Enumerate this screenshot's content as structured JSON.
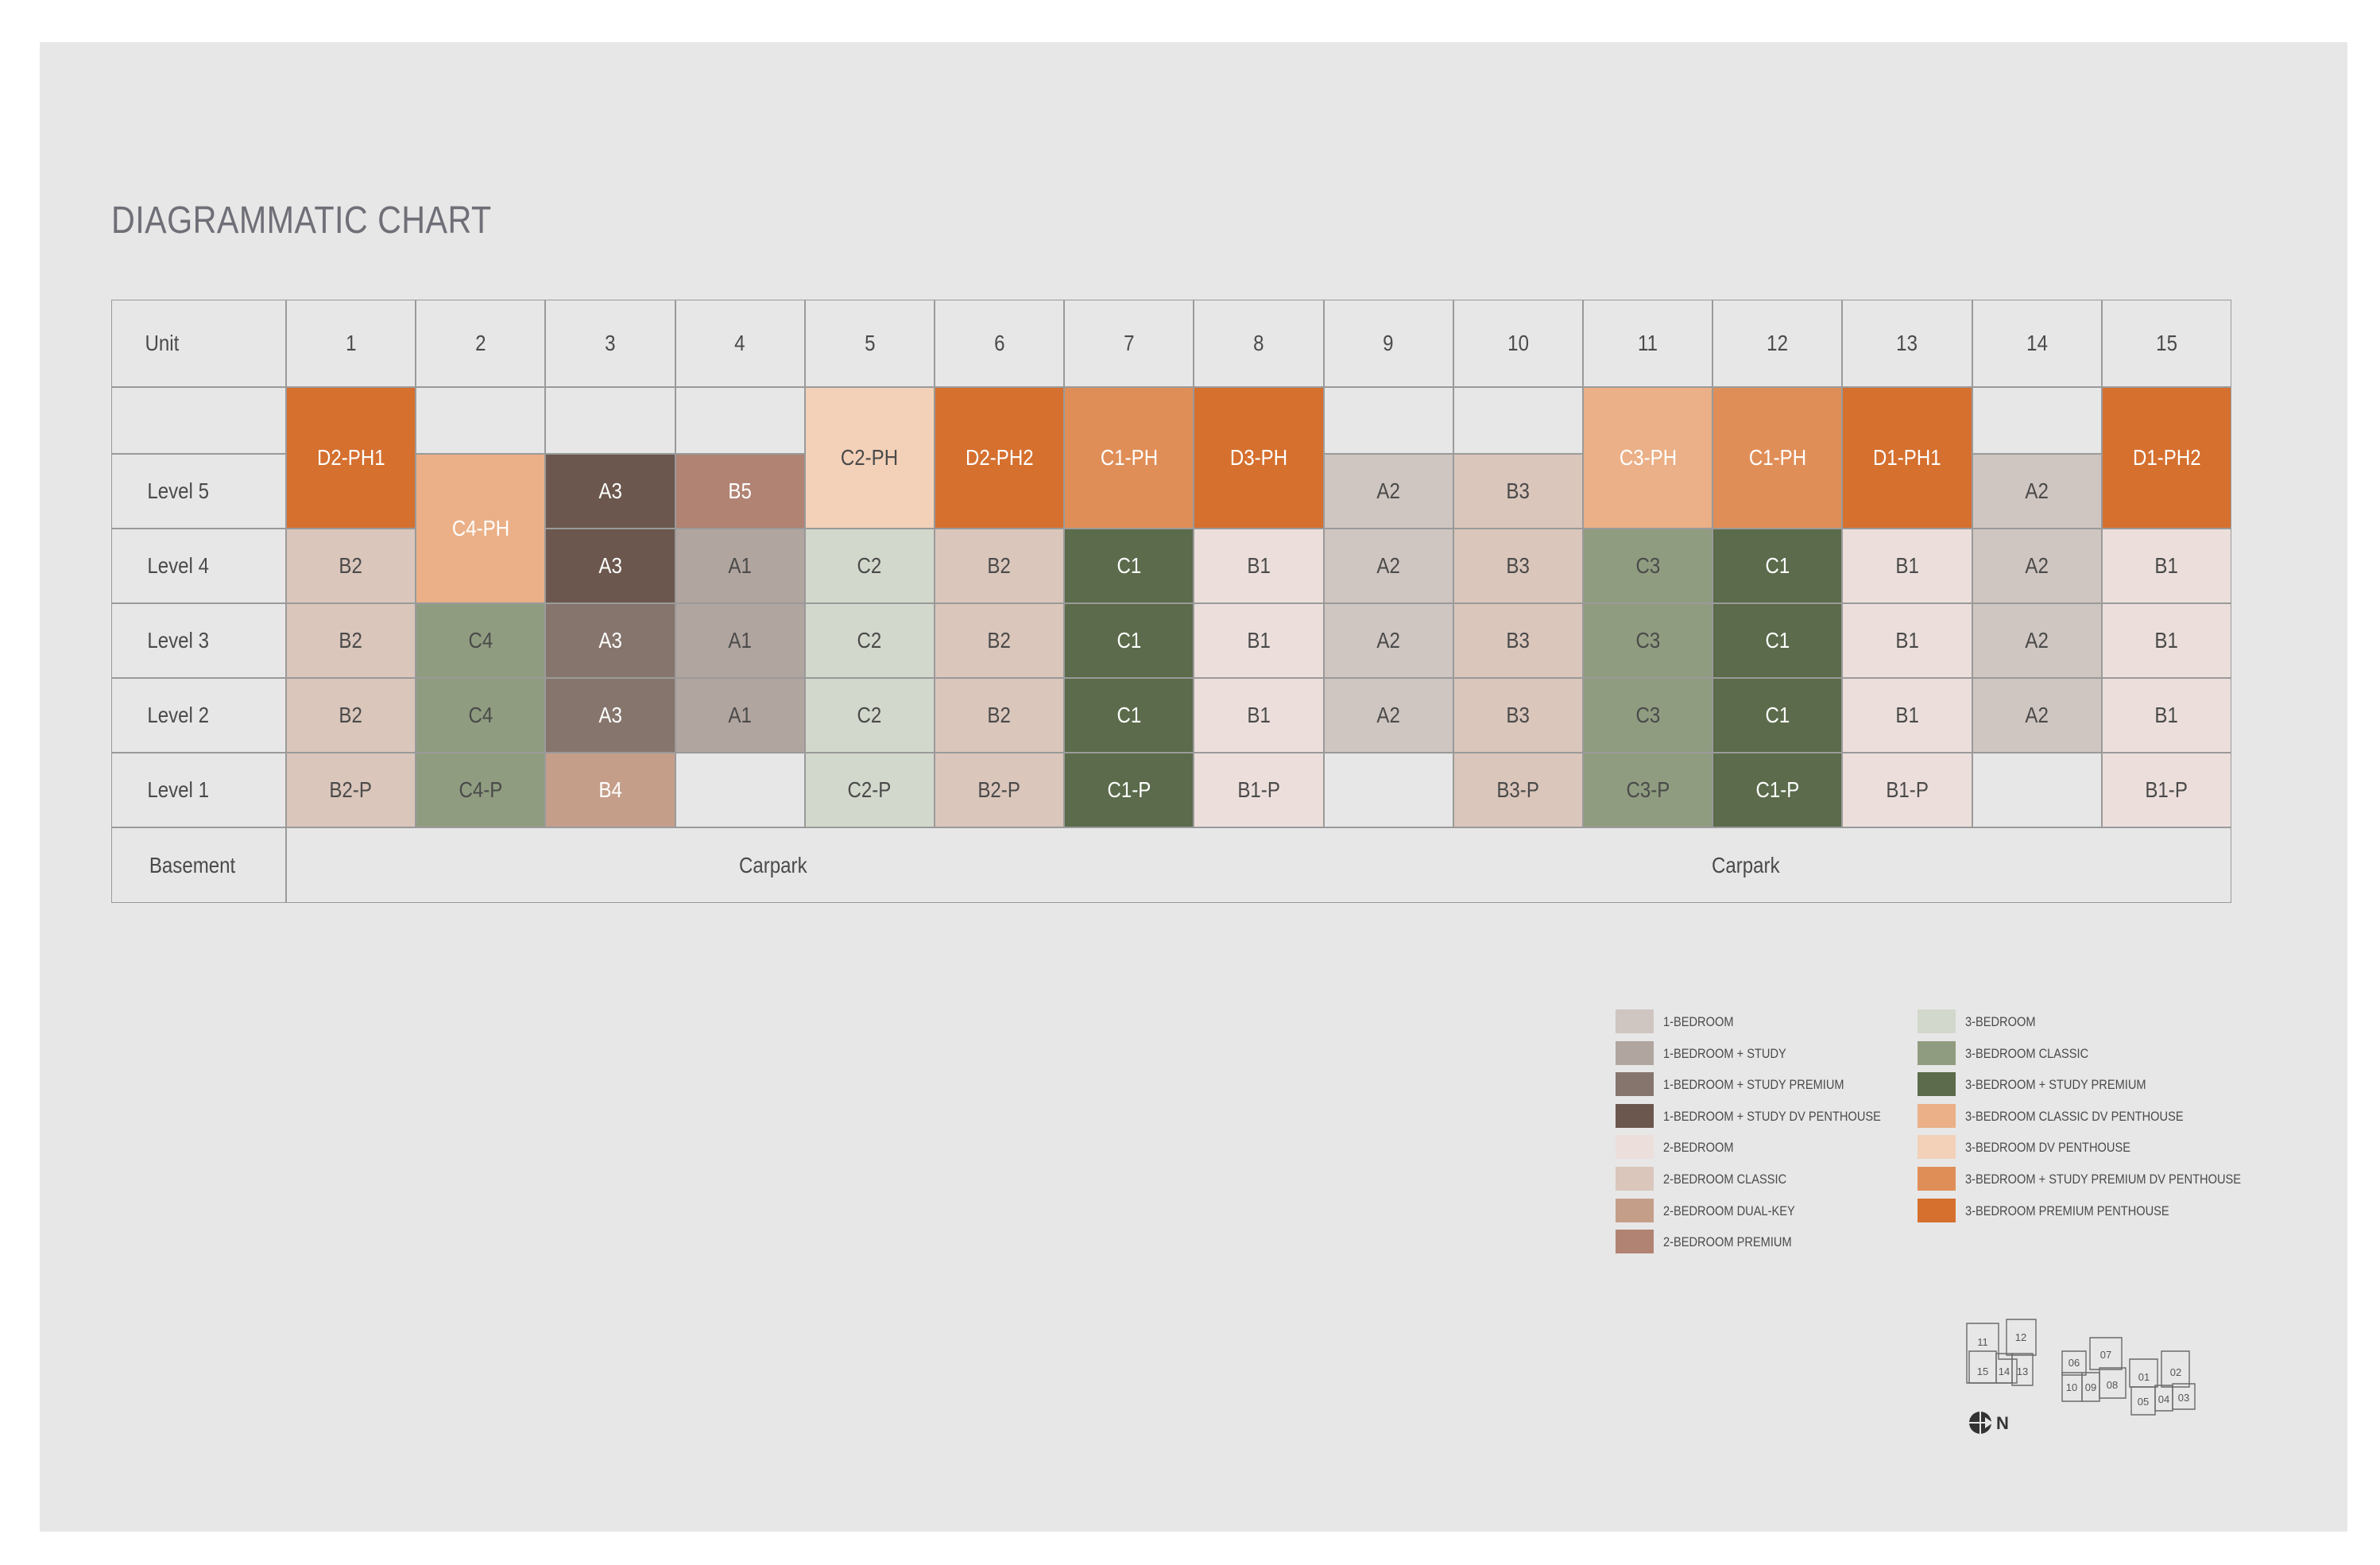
{
  "title": "DIAGRAMMATIC CHART",
  "header": {
    "label": "Unit",
    "units": [
      "1",
      "2",
      "3",
      "4",
      "5",
      "6",
      "7",
      "8",
      "9",
      "10",
      "11",
      "12",
      "13",
      "14",
      "15"
    ]
  },
  "rows": [
    {
      "label": "",
      "cells": [
        "D2-PH1",
        "",
        "",
        "",
        "C2-PH",
        "D2-PH2",
        "C1-PH",
        "D3-PH",
        "",
        "",
        "C3-PH",
        "C1-PH",
        "D1-PH1",
        "",
        "D1-PH2"
      ]
    },
    {
      "label": "Level 5",
      "cells": [
        "D2-PH1",
        "C4-PH",
        "A3",
        "B5",
        "C2-PH",
        "D2-PH2",
        "C1-PH",
        "D3-PH",
        "A2",
        "B3",
        "C3-PH",
        "C1-PH",
        "D1-PH1",
        "A2",
        "D1-PH2"
      ]
    },
    {
      "label": "Level 4",
      "cells": [
        "B2",
        "C4-PH",
        "A3",
        "A1",
        "C2",
        "B2",
        "C1",
        "B1",
        "A2",
        "B3",
        "C3",
        "C1",
        "B1",
        "A2",
        "B1"
      ]
    },
    {
      "label": "Level 3",
      "cells": [
        "B2",
        "C4",
        "A3",
        "A1",
        "C2",
        "B2",
        "C1",
        "B1",
        "A2",
        "B3",
        "C3",
        "C1",
        "B1",
        "A2",
        "B1"
      ]
    },
    {
      "label": "Level 2",
      "cells": [
        "B2",
        "C4",
        "A3",
        "A1",
        "C2",
        "B2",
        "C1",
        "B1",
        "A2",
        "B3",
        "C3",
        "C1",
        "B1",
        "A2",
        "B1"
      ]
    },
    {
      "label": "Level 1",
      "cells": [
        "B2-P",
        "C4-P",
        "B4",
        "",
        "C2-P",
        "B2-P",
        "C1-P",
        "B1-P",
        "",
        "B3-P",
        "C3-P",
        "C1-P",
        "B1-P",
        "",
        "B1-P"
      ]
    }
  ],
  "basement": {
    "label": "Basement",
    "left": "Carpark",
    "right": "Carpark"
  },
  "colors": {
    "1br": "#cfc5c1",
    "1br_study": "#b1a59f",
    "1br_study_premium": "#86756d",
    "1br_study_dv_penthouse": "#6b574d",
    "2br": "#ecdfdb",
    "2br_classic": "#dac6bb",
    "2br_dual_key": "#c59e8a",
    "2br_premium": "#b18373",
    "3br": "#d3d8cc",
    "3br_classic": "#909c80",
    "3br_study_premium": "#5b6b4b",
    "3br_classic_dv_penthouse": "#ebb087",
    "3br_dv_penthouse": "#f3d0b8",
    "3br_study_premium_dv_penthouse": "#e08e58",
    "3br_premium_penthouse": "#d5702f"
  },
  "legend": [
    {
      "label": "1-BEDROOM",
      "color": "#cfc5c1"
    },
    {
      "label": "1-BEDROOM + STUDY",
      "color": "#b1a59f"
    },
    {
      "label": "1-BEDROOM + STUDY PREMIUM",
      "color": "#86756d"
    },
    {
      "label": "1-BEDROOM + STUDY DV PENTHOUSE",
      "color": "#6b574d"
    },
    {
      "label": "2-BEDROOM",
      "color": "#ecdfdb"
    },
    {
      "label": "2-BEDROOM CLASSIC",
      "color": "#dac6bb"
    },
    {
      "label": "2-BEDROOM DUAL-KEY",
      "color": "#c59e8a"
    },
    {
      "label": "2-BEDROOM PREMIUM",
      "color": "#b18373"
    },
    {
      "label": "3-BEDROOM",
      "color": "#d3d8cc"
    },
    {
      "label": "3-BEDROOM CLASSIC",
      "color": "#909c80"
    },
    {
      "label": "3-BEDROOM + STUDY PREMIUM",
      "color": "#5b6b4b"
    },
    {
      "label": "3-BEDROOM CLASSIC DV PENTHOUSE",
      "color": "#ebb087"
    },
    {
      "label": "3-BEDROOM DV PENTHOUSE",
      "color": "#f3d0b8"
    },
    {
      "label": "3-BEDROOM + STUDY PREMIUM DV PENTHOUSE",
      "color": "#e08e58"
    },
    {
      "label": "3-BEDROOM PREMIUM PENTHOUSE",
      "color": "#d5702f"
    }
  ],
  "keyplan": {
    "units": [
      "11",
      "12",
      "15",
      "14",
      "13",
      "06",
      "07",
      "10",
      "09",
      "08",
      "01",
      "02",
      "05",
      "04",
      "03"
    ],
    "compass": "N"
  }
}
